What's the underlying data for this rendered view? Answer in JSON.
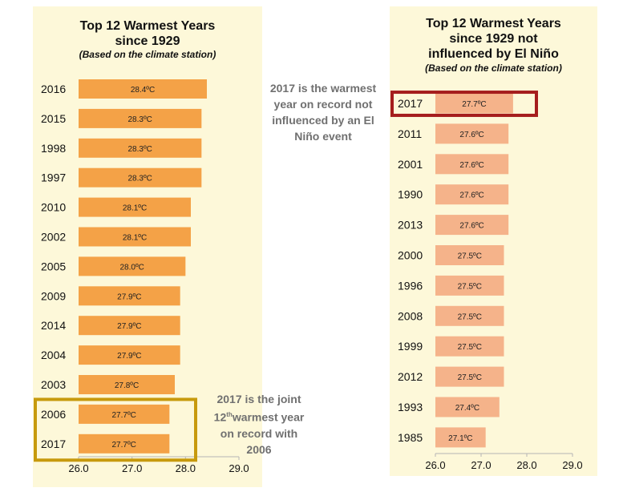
{
  "chart_data": [
    {
      "type": "bar",
      "orientation": "horizontal",
      "title": "Top 12 Warmest Years since 1929",
      "title_lines": [
        "Top 12 Warmest Years",
        "since 1929"
      ],
      "subtitle": "(Based on the climate station)",
      "categories": [
        "2016",
        "2015",
        "1998",
        "1997",
        "2010",
        "2002",
        "2005",
        "2009",
        "2014",
        "2004",
        "2003",
        "2006",
        "2017"
      ],
      "values": [
        28.4,
        28.3,
        28.3,
        28.3,
        28.1,
        28.1,
        28.0,
        27.9,
        27.9,
        27.9,
        27.8,
        27.7,
        27.7
      ],
      "labels": [
        "28.4ºC",
        "28.3ºC",
        "28.3ºC",
        "28.3ºC",
        "28.1ºC",
        "28.1ºC",
        "28.0ºC",
        "27.9ºC",
        "27.9ºC",
        "27.9ºC",
        "27.8ºC",
        "27.7ºC",
        "27.7ºC"
      ],
      "xlim": [
        26.0,
        29.0
      ],
      "xticks": [
        "26.0",
        "27.0",
        "28.0",
        "29.0"
      ],
      "bar_color": "#f4a247",
      "highlight": {
        "categories": [
          "2006",
          "2017"
        ],
        "color": "#c79a0d"
      },
      "annotation_lines": [
        "2017 is the joint",
        "12",
        "th",
        "warmest year",
        "on record with",
        "2006"
      ]
    },
    {
      "type": "bar",
      "orientation": "horizontal",
      "title": "Top 12 Warmest Years since 1929 not influenced by El Niño",
      "title_lines": [
        "Top 12 Warmest Years",
        "since 1929 not",
        "influenced by El Niño"
      ],
      "subtitle": "(Based on the climate station)",
      "categories": [
        "2017",
        "2011",
        "2001",
        "1990",
        "2013",
        "2000",
        "1996",
        "2008",
        "1999",
        "2012",
        "1993",
        "1985"
      ],
      "values": [
        27.7,
        27.6,
        27.6,
        27.6,
        27.6,
        27.5,
        27.5,
        27.5,
        27.5,
        27.5,
        27.4,
        27.1
      ],
      "labels": [
        "27.7ºC",
        "27.6ºC",
        "27.6ºC",
        "27.6ºC",
        "27.6ºC",
        "27.5ºC",
        "27.5ºC",
        "27.5ºC",
        "27.5ºC",
        "27.5ºC",
        "27.4ºC",
        "27.1ºC"
      ],
      "xlim": [
        26.0,
        29.0
      ],
      "xticks": [
        "26.0",
        "27.0",
        "28.0",
        "29.0"
      ],
      "bar_color": "#f5b38a",
      "highlight": {
        "categories": [
          "2017"
        ],
        "color": "#a51d1d"
      },
      "annotation_lines": [
        "2017 is the warmest",
        "year on record not",
        "influenced by an El",
        "Niño event"
      ]
    }
  ]
}
